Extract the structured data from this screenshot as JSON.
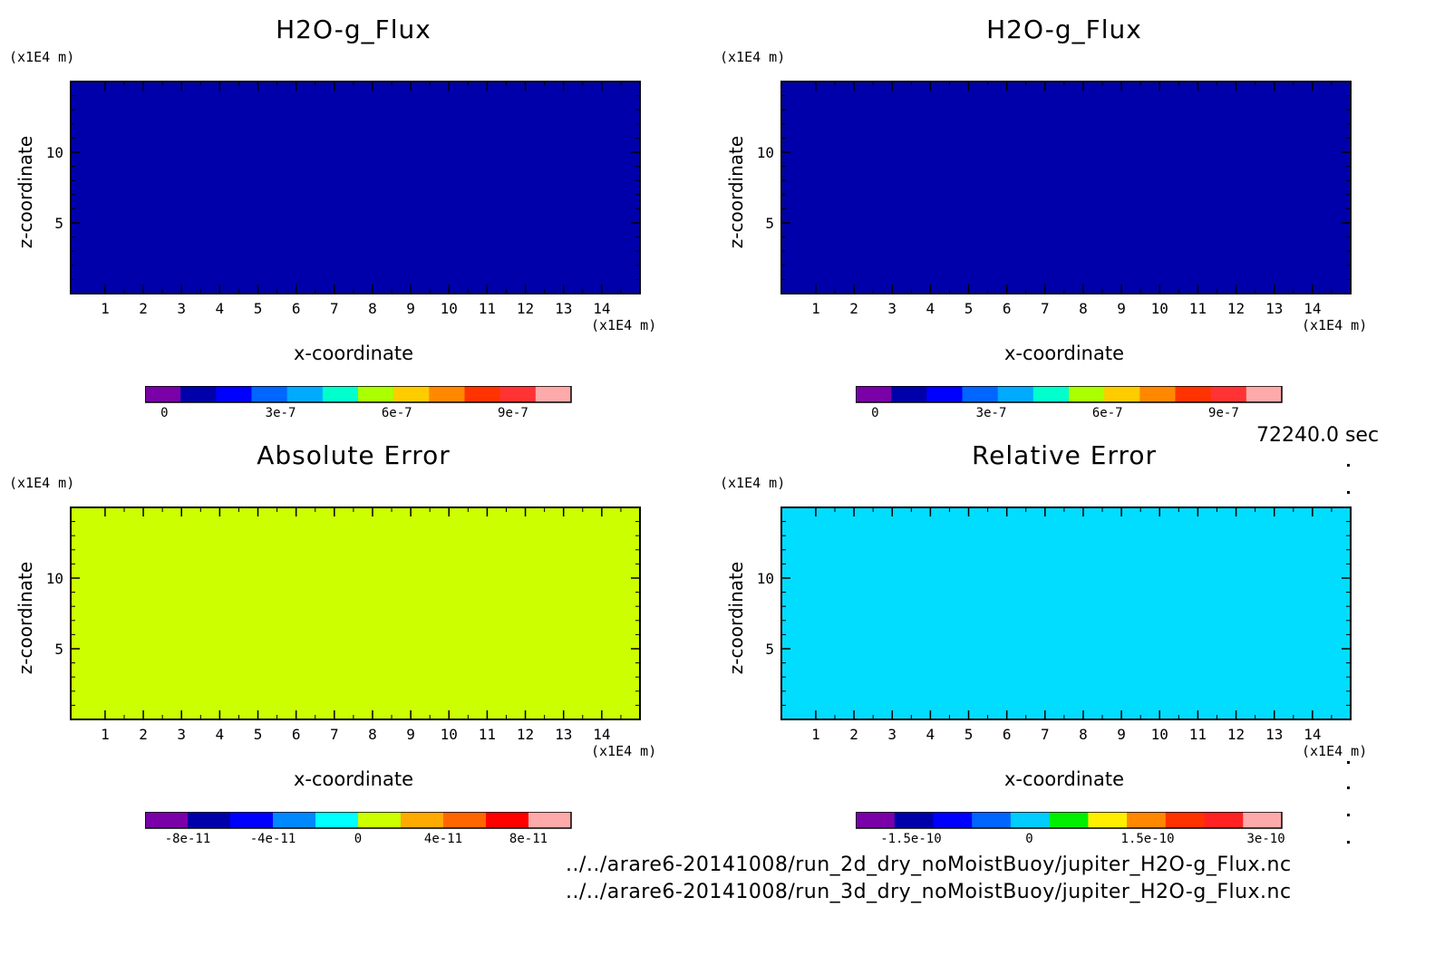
{
  "chart_data": [
    {
      "type": "heatmap",
      "title": "H2O-g_Flux",
      "xlabel": "x-coordinate",
      "ylabel": "z-coordinate",
      "x_unit": "(x1E4 m)",
      "y_unit": "(x1E4 m)",
      "xlim": [
        0.1,
        15
      ],
      "ylim": [
        0,
        15
      ],
      "x_ticks": [
        1,
        2,
        3,
        4,
        5,
        6,
        7,
        8,
        9,
        10,
        11,
        12,
        13,
        14
      ],
      "y_ticks": [
        5,
        10
      ],
      "field_value": 0,
      "fill_color": "#0000aa",
      "colorbar": {
        "colors": [
          "#7a00a8",
          "#0000aa",
          "#0000ff",
          "#0066ff",
          "#00aaff",
          "#00ffcc",
          "#aaff00",
          "#ffcc00",
          "#ff8800",
          "#ff3300",
          "#ff3333",
          "#ffaaaa"
        ],
        "tick_labels": [
          "0",
          "3e-7",
          "6e-7",
          "9e-7"
        ],
        "tick_values": [
          0,
          3e-07,
          6e-07,
          9e-07
        ],
        "range": [
          -5e-08,
          1.05e-06
        ]
      }
    },
    {
      "type": "heatmap",
      "title": "H2O-g_Flux",
      "xlabel": "x-coordinate",
      "ylabel": "z-coordinate",
      "x_unit": "(x1E4 m)",
      "y_unit": "(x1E4 m)",
      "xlim": [
        0.1,
        15
      ],
      "ylim": [
        0,
        15
      ],
      "x_ticks": [
        1,
        2,
        3,
        4,
        5,
        6,
        7,
        8,
        9,
        10,
        11,
        12,
        13,
        14
      ],
      "y_ticks": [
        5,
        10
      ],
      "field_value": 0,
      "fill_color": "#0000aa",
      "colorbar": {
        "colors": [
          "#7a00a8",
          "#0000aa",
          "#0000ff",
          "#0066ff",
          "#00aaff",
          "#00ffcc",
          "#aaff00",
          "#ffcc00",
          "#ff8800",
          "#ff3300",
          "#ff3333",
          "#ffaaaa"
        ],
        "tick_labels": [
          "0",
          "3e-7",
          "6e-7",
          "9e-7"
        ],
        "tick_values": [
          0,
          3e-07,
          6e-07,
          9e-07
        ],
        "range": [
          -5e-08,
          1.05e-06
        ]
      }
    },
    {
      "type": "heatmap",
      "title": "Absolute Error",
      "xlabel": "x-coordinate",
      "ylabel": "z-coordinate",
      "x_unit": "(x1E4 m)",
      "y_unit": "(x1E4 m)",
      "xlim": [
        0.1,
        15
      ],
      "ylim": [
        0,
        15
      ],
      "x_ticks": [
        1,
        2,
        3,
        4,
        5,
        6,
        7,
        8,
        9,
        10,
        11,
        12,
        13,
        14
      ],
      "y_ticks": [
        5,
        10
      ],
      "field_value": 0,
      "fill_color": "#ccff00",
      "colorbar": {
        "colors": [
          "#7a00a8",
          "#0000aa",
          "#0000ff",
          "#0088ff",
          "#00ffff",
          "#ccff00",
          "#ffaa00",
          "#ff6600",
          "#ff0000",
          "#ffaaaa"
        ],
        "tick_labels": [
          "-8e-11",
          "-4e-11",
          "0",
          "4e-11",
          "8e-11"
        ],
        "tick_values": [
          -8e-11,
          -4e-11,
          0,
          4e-11,
          8e-11
        ],
        "range": [
          -1e-10,
          1e-10
        ]
      }
    },
    {
      "type": "heatmap",
      "title": "Relative Error",
      "xlabel": "x-coordinate",
      "ylabel": "z-coordinate",
      "x_unit": "(x1E4 m)",
      "y_unit": "(x1E4 m)",
      "xlim": [
        0.1,
        15
      ],
      "ylim": [
        0,
        15
      ],
      "x_ticks": [
        1,
        2,
        3,
        4,
        5,
        6,
        7,
        8,
        9,
        10,
        11,
        12,
        13,
        14
      ],
      "y_ticks": [
        5,
        10
      ],
      "field_value": 0,
      "fill_color": "#00ddff",
      "colorbar": {
        "colors": [
          "#7a00a8",
          "#0000aa",
          "#0000ff",
          "#0066ff",
          "#00ccff",
          "#00ee00",
          "#ffee00",
          "#ff8800",
          "#ff3300",
          "#ff2222",
          "#ffaaaa"
        ],
        "tick_labels": [
          "-1.5e-10",
          "0",
          "1.5e-10",
          "3e-10"
        ],
        "tick_values": [
          -1.5e-10,
          0,
          1.5e-10,
          3e-10
        ],
        "range": [
          -2.2e-10,
          3.2e-10
        ]
      }
    }
  ],
  "timestamp": "72240.0 sec",
  "footer": {
    "line1": "../../arare6-20141008/run_2d_dry_noMoistBuoy/jupiter_H2O-g_Flux.nc",
    "line2": "../../arare6-20141008/run_3d_dry_noMoistBuoy/jupiter_H2O-g_Flux.nc"
  }
}
